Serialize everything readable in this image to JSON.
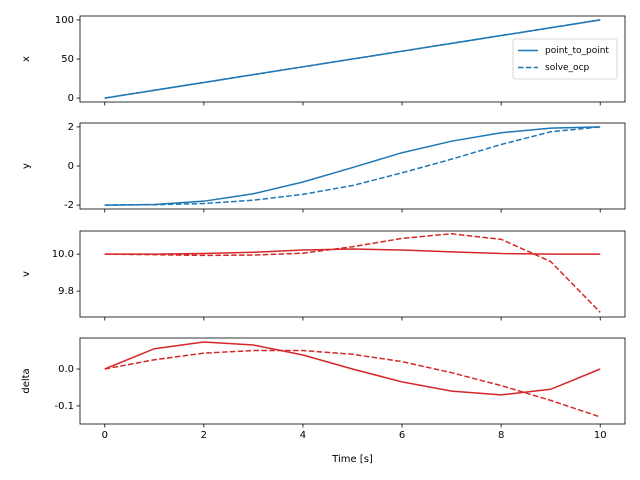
{
  "chart_data": [
    {
      "type": "line",
      "ylabel": "x",
      "x": [
        0,
        1,
        2,
        3,
        4,
        5,
        6,
        7,
        8,
        9,
        10
      ],
      "xlim": [
        -0.5,
        10.5
      ],
      "xticks": [
        0,
        2,
        4,
        6,
        8,
        10
      ],
      "ylim": [
        -5,
        105
      ],
      "yticks": [
        0,
        50,
        100
      ],
      "legend": "center right",
      "series": [
        {
          "name": "point_to_point",
          "color": "#1f77b4",
          "style": "solid",
          "values": [
            0,
            10,
            20,
            30,
            40,
            50,
            60,
            70,
            80,
            90,
            100
          ]
        },
        {
          "name": "solve_ocp",
          "color": "#1f77b4",
          "style": "dashed",
          "values": [
            0,
            10,
            20,
            30,
            40,
            50,
            60,
            70,
            80,
            90,
            100
          ]
        }
      ]
    },
    {
      "type": "line",
      "ylabel": "y",
      "x": [
        0,
        1,
        2,
        3,
        4,
        5,
        6,
        7,
        8,
        9,
        10
      ],
      "xlim": [
        -0.5,
        10.5
      ],
      "xticks": [
        0,
        2,
        4,
        6,
        8,
        10
      ],
      "ylim": [
        -2.2,
        2.2
      ],
      "yticks": [
        -2,
        0,
        2
      ],
      "series": [
        {
          "color": "#1f77b4",
          "style": "solid",
          "values": [
            -2,
            -1.97,
            -1.8,
            -1.42,
            -0.82,
            -0.08,
            0.68,
            1.27,
            1.7,
            1.94,
            2
          ]
        },
        {
          "color": "#1f77b4",
          "style": "dashed",
          "values": [
            -2,
            -1.98,
            -1.92,
            -1.75,
            -1.45,
            -1.0,
            -0.35,
            0.35,
            1.1,
            1.75,
            2
          ]
        }
      ]
    },
    {
      "type": "line",
      "ylabel": "v",
      "x": [
        0,
        1,
        2,
        3,
        4,
        5,
        6,
        7,
        8,
        9,
        10
      ],
      "xlim": [
        -0.5,
        10.5
      ],
      "xticks": [
        0,
        2,
        4,
        6,
        8,
        10
      ],
      "ylim": [
        9.66,
        10.125
      ],
      "yticks": [
        9.8,
        {
          "value": 10,
          "label": "10.0"
        }
      ],
      "series": [
        {
          "color": "#d62728",
          "style": "solid",
          "values": [
            10,
            10,
            10.003,
            10.01,
            10.022,
            10.028,
            10.022,
            10.012,
            10.003,
            10,
            10
          ]
        },
        {
          "color": "#d62728",
          "style": "dashed",
          "values": [
            10,
            9.997,
            9.993,
            9.995,
            10.005,
            10.04,
            10.085,
            10.11,
            10.08,
            9.96,
            9.685
          ]
        }
      ]
    },
    {
      "type": "line",
      "ylabel": "delta",
      "xlabel": "Time [s]",
      "x": [
        0,
        1,
        2,
        3,
        4,
        5,
        6,
        7,
        8,
        9,
        10
      ],
      "xlim": [
        -0.5,
        10.5
      ],
      "xticks": [
        0,
        2,
        4,
        6,
        8,
        10
      ],
      "ylim": [
        -0.149,
        0.084
      ],
      "yticks": [
        -0.1,
        {
          "value": 0,
          "label": "0.0"
        }
      ],
      "series": [
        {
          "color": "#d62728",
          "style": "solid",
          "values": [
            0,
            0.055,
            0.073,
            0.065,
            0.038,
            0.0,
            -0.035,
            -0.06,
            -0.07,
            -0.055,
            0
          ]
        },
        {
          "color": "#d62728",
          "style": "dashed",
          "values": [
            0,
            0.025,
            0.043,
            0.05,
            0.05,
            0.04,
            0.02,
            -0.01,
            -0.045,
            -0.085,
            -0.13
          ]
        }
      ]
    }
  ]
}
